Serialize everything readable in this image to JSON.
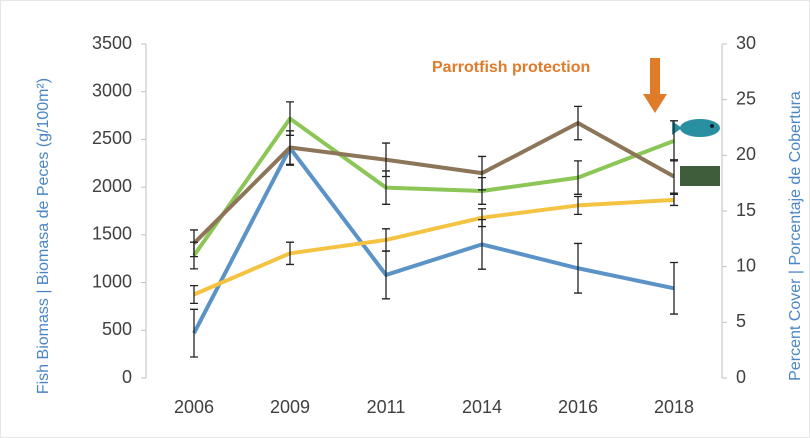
{
  "chart_data": {
    "type": "line",
    "annotation": "Parrotfish protection",
    "ylabel": "Fish Biomass | Biomasa de Peces (g/100m²)",
    "y2label": "Percent Cover | Porcentaje de Cobertura",
    "categories": [
      "2006",
      "2009",
      "2011",
      "2014",
      "2016",
      "2018"
    ],
    "ylim": [
      0,
      3500
    ],
    "yticks": [
      0,
      500,
      1000,
      1500,
      2000,
      2500,
      3000,
      3500
    ],
    "y2lim": [
      0,
      30
    ],
    "y2ticks": [
      0,
      5,
      10,
      15,
      20,
      25,
      30
    ],
    "grid": false,
    "series": [
      {
        "color": "#5b93c7",
        "values": [
          470,
          2410,
          1080,
          1400,
          1150,
          940
        ],
        "errors": [
          250,
          180,
          250,
          260,
          260,
          270
        ]
      },
      {
        "color": "#8cc657",
        "axis": "y2",
        "values": [
          11.0,
          23.3,
          17.1,
          16.8,
          18.0,
          21.3
        ],
        "errors": [
          1.2,
          1.5,
          1.5,
          1.2,
          1.5,
          1.8
        ]
      },
      {
        "color": "#8c7558",
        "axis": "y2",
        "values": [
          12.1,
          20.7,
          19.6,
          18.4,
          22.9,
          18.1
        ],
        "errors": [
          1.2,
          1.5,
          1.5,
          1.5,
          1.5,
          1.5
        ]
      },
      {
        "color": "#f5c342",
        "axis": "y2",
        "values": [
          7.5,
          11.2,
          12.4,
          14.4,
          15.5,
          16.0
        ],
        "errors": [
          0.8,
          1.0,
          1.0,
          0.8,
          0.8,
          0.5
        ]
      }
    ]
  }
}
